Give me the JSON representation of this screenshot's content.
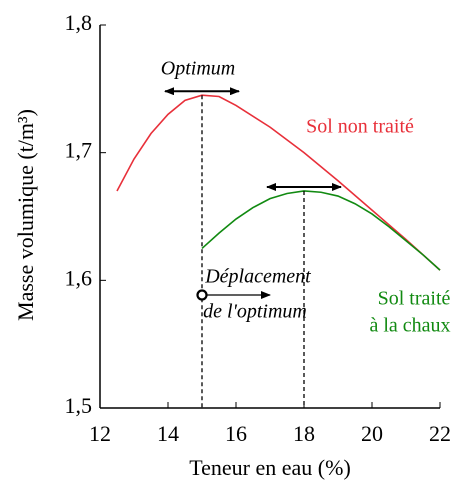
{
  "chart_data": {
    "type": "line",
    "xlabel": "Teneur en eau (%)",
    "ylabel": "Masse volumique (t/m³)",
    "xlim": [
      12,
      22
    ],
    "xticks": [
      12,
      14,
      16,
      18,
      20,
      22
    ],
    "ylim": [
      1.5,
      1.8
    ],
    "yticks": [
      {
        "value": 1.5,
        "label": "1,5"
      },
      {
        "value": 1.6,
        "label": "1,6"
      },
      {
        "value": 1.7,
        "label": "1,7"
      },
      {
        "value": 1.8,
        "label": "1,8"
      }
    ],
    "series": [
      {
        "color": "#e8303a",
        "x": [
          12.5,
          13,
          13.5,
          14,
          14.5,
          15,
          15.5,
          16,
          17,
          18,
          19,
          20,
          21,
          22
        ],
        "values": [
          1.67,
          1.695,
          1.715,
          1.73,
          1.741,
          1.745,
          1.744,
          1.737,
          1.72,
          1.7,
          1.678,
          1.655,
          1.632,
          1.608
        ]
      },
      {
        "color": "#118a11",
        "x": [
          15,
          15.5,
          16,
          16.5,
          17,
          17.5,
          18,
          18.5,
          19,
          19.5,
          20,
          20.5,
          21,
          21.5,
          22
        ],
        "values": [
          1.625,
          1.637,
          1.648,
          1.657,
          1.664,
          1.668,
          1.67,
          1.669,
          1.666,
          1.66,
          1.652,
          1.642,
          1.631,
          1.62,
          1.608
        ]
      }
    ],
    "annotations": [
      "Optimum",
      "Sol non traité",
      "Sol traité",
      "à la chaux",
      "Déplacement",
      "de l'optimum"
    ]
  }
}
